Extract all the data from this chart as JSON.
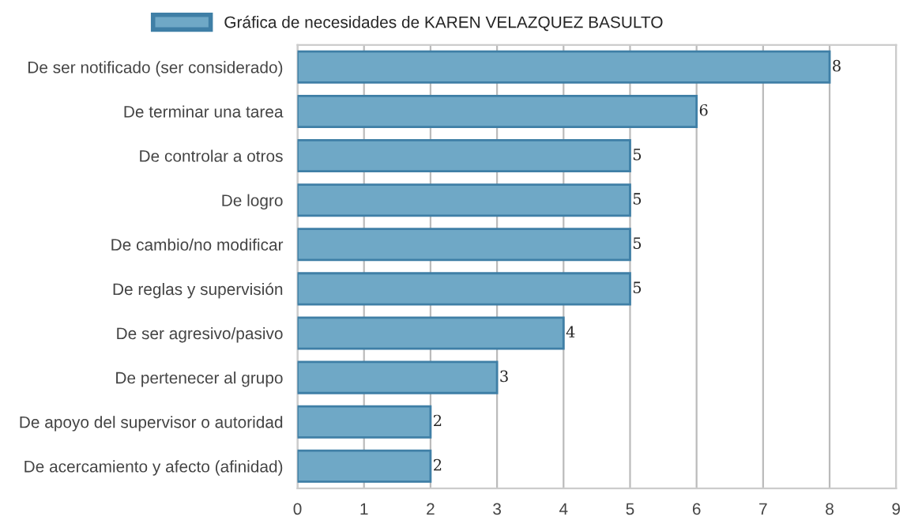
{
  "chart_data": {
    "type": "bar",
    "orientation": "horizontal",
    "categories": [
      "De ser notificado (ser considerado)",
      "De terminar una tarea",
      "De controlar a otros",
      "De logro",
      "De cambio/no modificar",
      "De reglas y supervisión",
      "De ser agresivo/pasivo",
      "De pertenecer al grupo",
      "De apoyo del supervisor o autoridad",
      "De acercamiento y afecto (afinidad)"
    ],
    "series": [
      {
        "name": "Gráfica de necesidades de KAREN VELAZQUEZ BASULTO",
        "color": "#6fa8c6",
        "values": [
          8,
          6,
          5,
          5,
          5,
          5,
          4,
          3,
          2,
          2
        ]
      }
    ],
    "xlim": [
      0,
      9
    ],
    "xticks": [
      0,
      1,
      2,
      3,
      4,
      5,
      6,
      7,
      8,
      9
    ],
    "grid": "x",
    "legend": "top",
    "data_labels": true
  }
}
